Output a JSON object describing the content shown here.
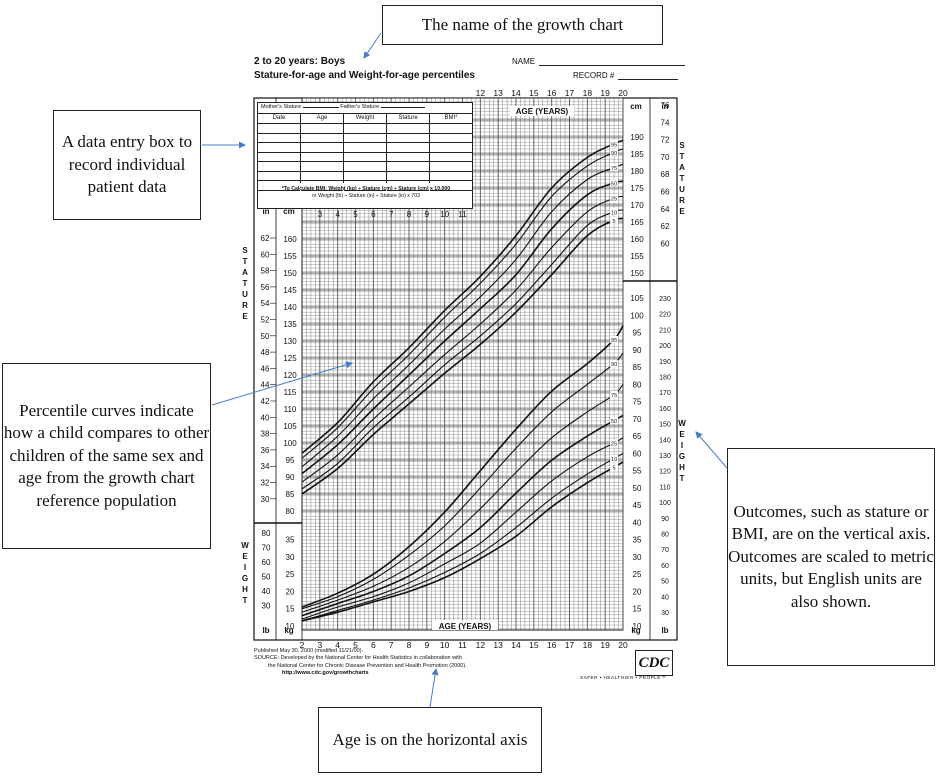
{
  "callouts": {
    "name": "The name of the growth chart",
    "entry": "A data entry box to record individual patient data",
    "percentile": "Percentile curves indicate how a child compares to other children of the same sex and age from the growth chart reference population",
    "outcomes": "Outcomes, such as stature or BMI, are on the vertical axis. Outcomes are scaled to metric units, but English units are also shown.",
    "age": "Age is on the horizontal axis"
  },
  "chart": {
    "title_line1": "2 to 20 years: Boys",
    "title_line2": "Stature-for-age and Weight-for-age percentiles",
    "name_label": "NAME",
    "record_label": "RECORD #",
    "table": {
      "mother_label": "Mother's Stature",
      "father_label": "Father's Stature",
      "columns": [
        "Date",
        "Age",
        "Weight",
        "Stature",
        "BMI*"
      ],
      "bmi_note_1": "*To Calculate BMI: Weight (kg) ÷ Stature (cm) ÷ Stature (cm) x 10,000",
      "bmi_note_2": "or Weight (lb) ÷ Stature (in) ÷ Stature (in) x 703"
    },
    "age_axis_title": "AGE (YEARS)",
    "age_ticks": [
      "2",
      "3",
      "4",
      "5",
      "6",
      "7",
      "8",
      "9",
      "10",
      "11",
      "12",
      "13",
      "14",
      "15",
      "16",
      "17",
      "18",
      "19",
      "20"
    ],
    "top_age_ticks": [
      "12",
      "13",
      "14",
      "15",
      "16",
      "17",
      "18",
      "19",
      "20"
    ],
    "inset_age_ticks": [
      "3",
      "4",
      "5",
      "6",
      "7",
      "8",
      "9",
      "10",
      "11"
    ],
    "left_stature_in": [
      "62",
      "60",
      "58",
      "56",
      "54",
      "52",
      "50",
      "48",
      "46",
      "44",
      "42",
      "40",
      "38",
      "36",
      "34",
      "32",
      "30"
    ],
    "left_stature_cm": [
      "160",
      "155",
      "150",
      "145",
      "140",
      "135",
      "130",
      "125",
      "120",
      "115",
      "110",
      "105",
      "100",
      "95",
      "90",
      "85",
      "80"
    ],
    "left_weight_lb": [
      "80",
      "70",
      "60",
      "50",
      "40",
      "30"
    ],
    "left_weight_kg": [
      "35",
      "30",
      "25",
      "20",
      "15",
      "10"
    ],
    "right_stature_in": [
      "76",
      "74",
      "72",
      "70",
      "68",
      "66",
      "64",
      "62",
      "60"
    ],
    "right_stature_cm": [
      "190",
      "185",
      "180",
      "175",
      "170",
      "165",
      "160",
      "155",
      "150"
    ],
    "right_weight_lb": [
      "230",
      "220",
      "210",
      "200",
      "190",
      "180",
      "170",
      "160",
      "150",
      "140",
      "130",
      "120",
      "110",
      "100",
      "90",
      "80",
      "70",
      "60",
      "50",
      "40",
      "30"
    ],
    "right_weight_kg": [
      "105",
      "100",
      "95",
      "90",
      "85",
      "80",
      "75",
      "70",
      "65",
      "60",
      "55",
      "50",
      "45",
      "40",
      "35",
      "30",
      "25",
      "20",
      "15",
      "10"
    ],
    "stature_vert": "STATURE",
    "weight_vert": "WEIGHT",
    "unit_in": "in",
    "unit_cm": "cm",
    "unit_lb": "lb",
    "unit_kg": "kg",
    "percentiles": [
      "95",
      "90",
      "75",
      "50",
      "25",
      "10",
      "5"
    ],
    "footer": {
      "published": "Published May 30, 2000 (modified 11/21/00).",
      "source_1": "SOURCE: Developed by the National Center for Health Statistics in collaboration with",
      "source_2": "the National Center for Chronic Disease Prevention and Health Promotion (2000).",
      "url": "http://www.cdc.gov/growthcharts",
      "logo": "CDC",
      "tagline": "SAFER • HEALTHIER • PEOPLE™"
    }
  }
}
